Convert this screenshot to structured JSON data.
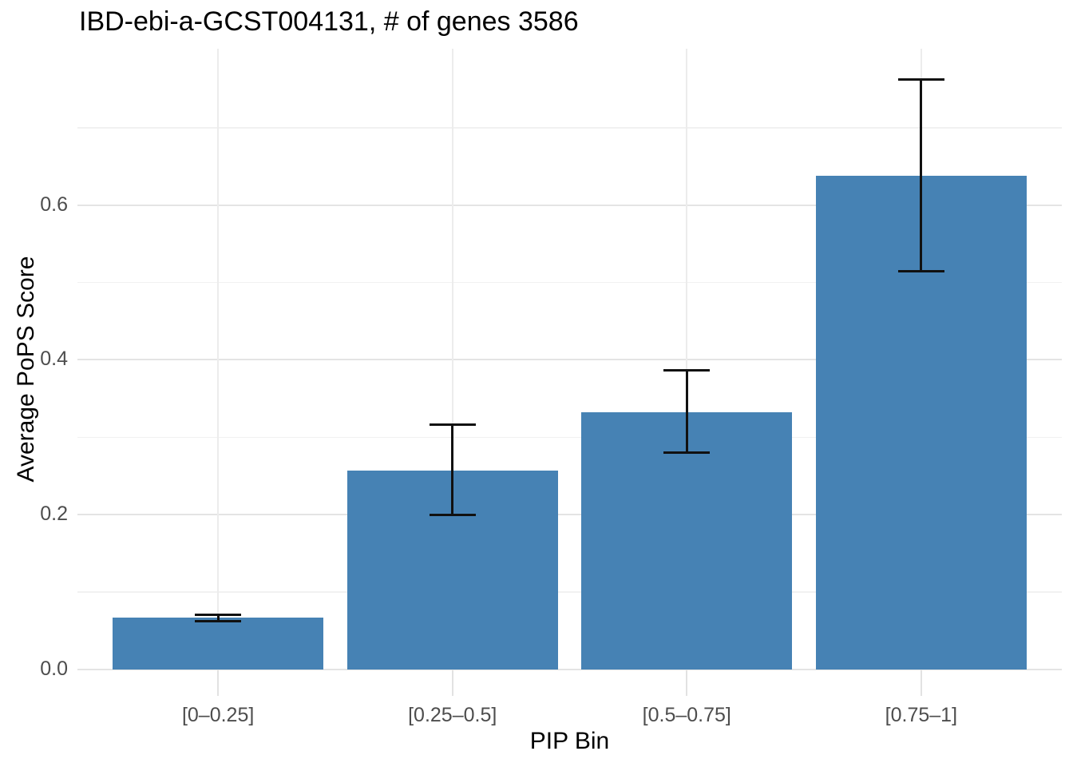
{
  "chart_data": {
    "type": "bar",
    "title": "IBD-ebi-a-GCST004131, # of genes 3586",
    "xlabel": "PIP Bin",
    "ylabel": "Average PoPS Score",
    "categories": [
      "[0–0.25]",
      "[0.25–0.5]",
      "[0.5–0.75]",
      "[0.75–1]"
    ],
    "values": [
      0.067,
      0.257,
      0.332,
      0.638
    ],
    "error_low": [
      0.062,
      0.2,
      0.28,
      0.515
    ],
    "error_high": [
      0.071,
      0.316,
      0.387,
      0.762
    ],
    "y_ticks": [
      {
        "value": 0.0,
        "label": "0.0"
      },
      {
        "value": 0.2,
        "label": "0.2"
      },
      {
        "value": 0.4,
        "label": "0.4"
      },
      {
        "value": 0.6,
        "label": "0.6"
      }
    ],
    "y_minor_ticks": [
      0.1,
      0.3,
      0.5,
      0.7
    ],
    "ylim": [
      0,
      0.802
    ],
    "grid": true,
    "legend": "none",
    "colors": {
      "bar_fill": "#4682b4",
      "error_bar": "#111111",
      "grid_major": "#e4e4e4",
      "grid_minor": "#f1f1f1",
      "grid_vertical": "#ececec",
      "axis_tick": "#e2e2e2",
      "axis_text": "#4d4d4d",
      "title_text": "#000000"
    }
  }
}
